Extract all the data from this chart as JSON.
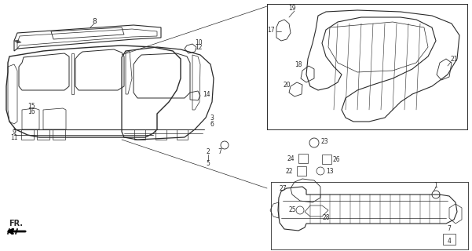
{
  "bg_color": "#ffffff",
  "line_color": "#2a2a2a",
  "fig_width": 6.01,
  "fig_height": 3.2,
  "dpi": 100
}
